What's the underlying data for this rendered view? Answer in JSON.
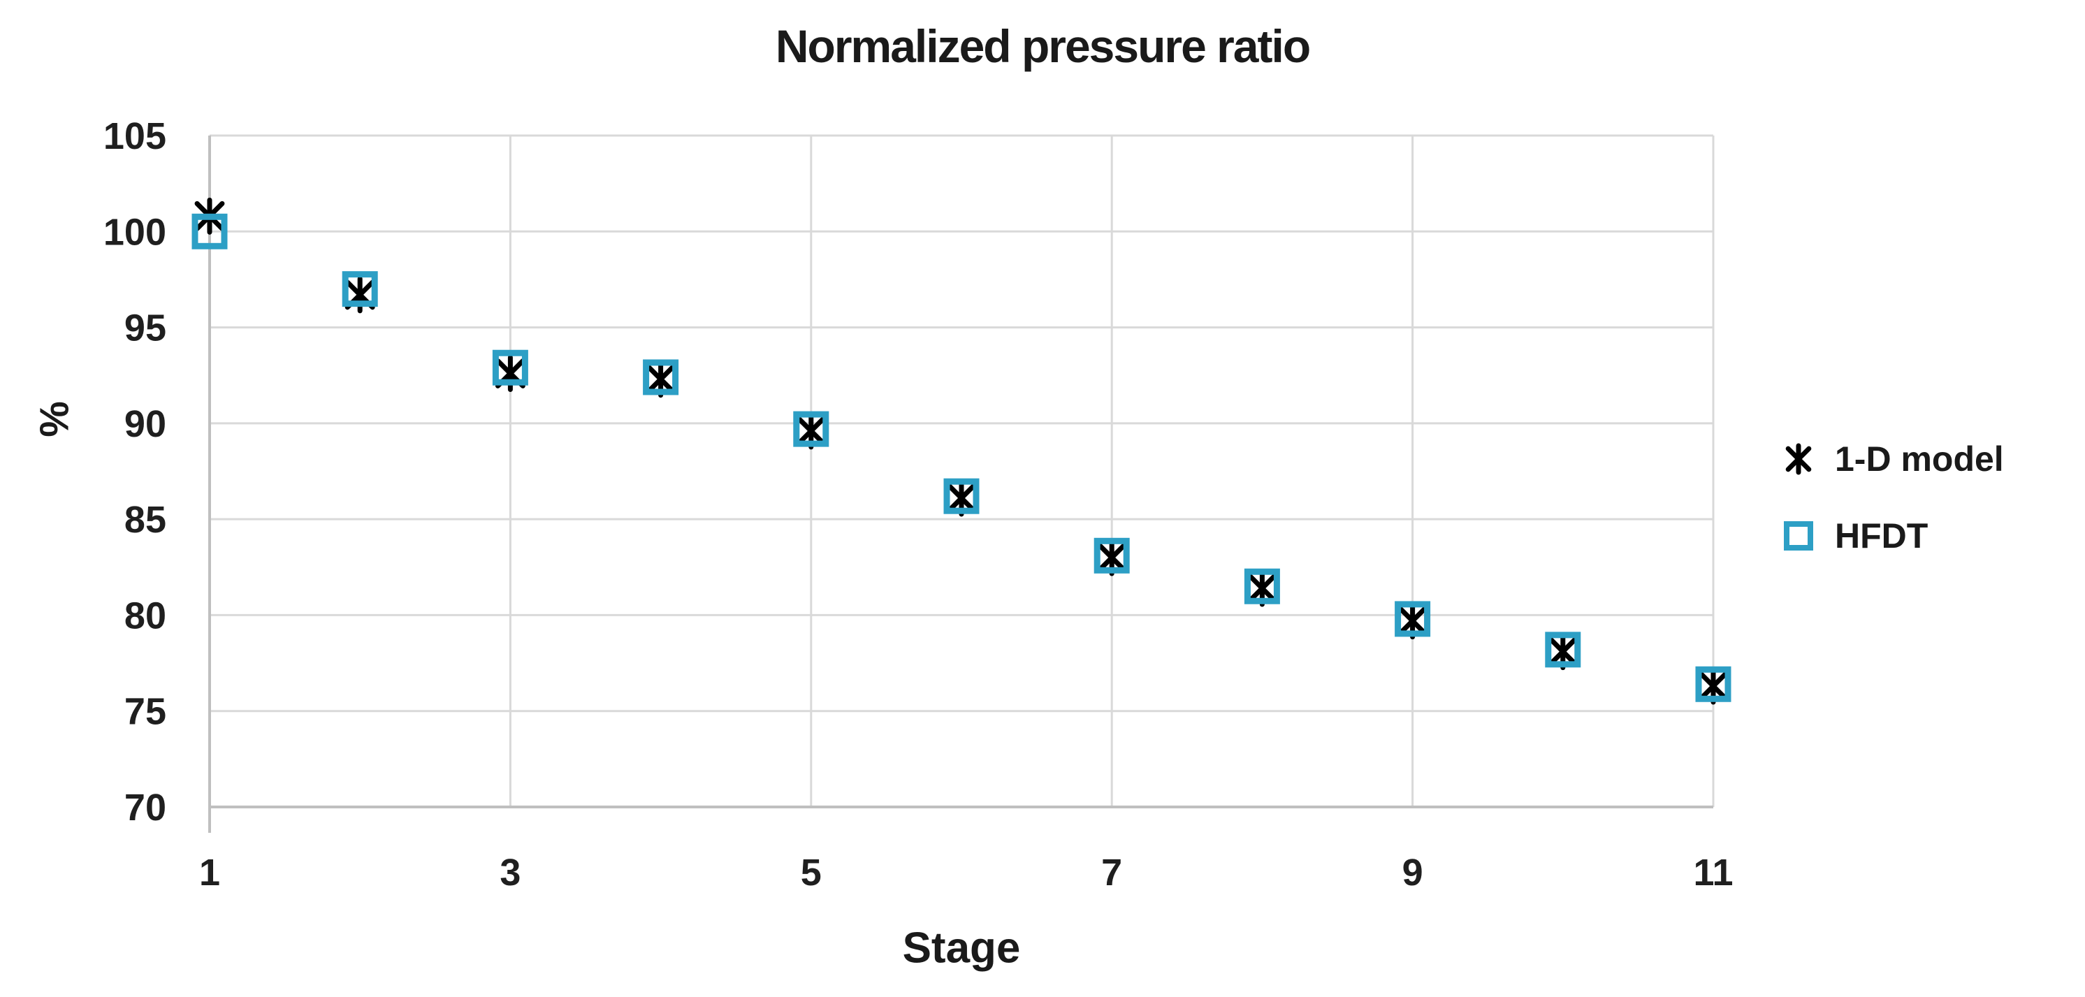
{
  "chart_data": {
    "type": "scatter",
    "title": "Normalized pressure ratio",
    "xlabel": "Stage",
    "ylabel": "%",
    "xlim": [
      1,
      11
    ],
    "ylim": [
      70,
      105
    ],
    "xticks": [
      1,
      3,
      5,
      7,
      9,
      11
    ],
    "yticks": [
      70,
      75,
      80,
      85,
      90,
      95,
      100,
      105
    ],
    "grid": true,
    "legend_position": "right-center",
    "x": [
      1,
      2,
      3,
      4,
      5,
      6,
      7,
      8,
      9,
      10,
      11
    ],
    "series": [
      {
        "name": "1-D model",
        "marker": "asterisk",
        "color": "#000000",
        "values": [
          100.8,
          96.7,
          92.6,
          92.3,
          89.6,
          86.1,
          83.0,
          81.4,
          79.7,
          78.1,
          76.3
        ]
      },
      {
        "name": "HFDT",
        "marker": "open-square",
        "color": "#2D9FC5",
        "values": [
          100.0,
          97.0,
          92.9,
          92.4,
          89.7,
          86.2,
          83.1,
          81.5,
          79.8,
          78.2,
          76.4
        ]
      }
    ]
  },
  "colors": {
    "background": "#ffffff",
    "gridline": "#d9d9d9",
    "axis": "#bfbfbf",
    "text": "#1f1f1f"
  }
}
